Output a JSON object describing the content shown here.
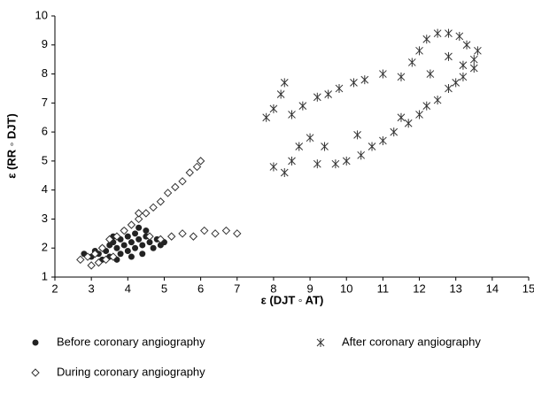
{
  "chart_data": {
    "type": "scatter",
    "x_label": "ε (DJT ◦ AT)",
    "y_label": "ε (RR ◦ DJT)",
    "xlim": [
      2,
      15
    ],
    "ylim": [
      1,
      10
    ],
    "xticks": [
      2,
      3,
      4,
      5,
      6,
      7,
      8,
      9,
      10,
      11,
      12,
      13,
      14,
      15
    ],
    "yticks": [
      1,
      2,
      3,
      4,
      5,
      6,
      7,
      8,
      9,
      10
    ],
    "series": [
      {
        "name": "Before coronary angiography",
        "color": "#222222",
        "marker": "circle",
        "x": [
          2.8,
          3.0,
          3.1,
          3.2,
          3.3,
          3.4,
          3.5,
          3.5,
          3.6,
          3.7,
          3.8,
          3.8,
          3.9,
          4.0,
          4.0,
          4.1,
          4.2,
          4.2,
          4.3,
          4.4,
          4.4,
          4.5,
          4.6,
          4.7,
          4.8,
          4.9,
          5.0,
          3.3,
          3.7,
          4.1,
          4.5,
          3.9,
          4.3,
          3.6
        ],
        "y": [
          1.8,
          1.7,
          1.9,
          1.8,
          2.0,
          1.9,
          2.1,
          1.7,
          2.2,
          2.0,
          2.3,
          1.8,
          2.1,
          2.4,
          1.9,
          2.2,
          2.0,
          2.5,
          2.3,
          2.1,
          1.8,
          2.4,
          2.2,
          2.0,
          2.3,
          2.1,
          2.2,
          1.6,
          1.6,
          1.7,
          2.6,
          2.6,
          2.7,
          2.4
        ]
      },
      {
        "name": "After coronary angiography",
        "color": "#333333",
        "marker": "asterisk",
        "x": [
          8.3,
          8.2,
          8.0,
          7.8,
          8.5,
          8.8,
          9.2,
          9.5,
          9.8,
          10.2,
          10.5,
          11.0,
          11.5,
          11.8,
          12.0,
          12.2,
          12.5,
          12.8,
          13.1,
          13.3,
          13.5,
          13.6,
          13.5,
          13.2,
          13.0,
          12.8,
          12.5,
          12.2,
          12.0,
          11.7,
          11.3,
          11.0,
          10.7,
          10.4,
          10.0,
          9.7,
          9.4,
          9.0,
          8.7,
          8.5,
          8.3,
          8.0,
          10.3,
          9.2,
          11.5,
          12.3,
          12.8,
          13.2
        ],
        "y": [
          7.7,
          7.3,
          6.8,
          6.5,
          6.6,
          6.9,
          7.2,
          7.3,
          7.5,
          7.7,
          7.8,
          8.0,
          7.9,
          8.4,
          8.8,
          9.2,
          9.4,
          9.4,
          9.3,
          9.0,
          8.5,
          8.8,
          8.2,
          7.9,
          7.7,
          7.5,
          7.1,
          6.9,
          6.6,
          6.3,
          6.0,
          5.7,
          5.5,
          5.2,
          5.0,
          4.9,
          5.5,
          5.8,
          5.5,
          5.0,
          4.6,
          4.8,
          5.9,
          4.9,
          6.5,
          8.0,
          8.6,
          8.3
        ]
      },
      {
        "name": "During coronary angiography",
        "color": "#333333",
        "marker": "diamond",
        "x": [
          2.7,
          2.9,
          3.1,
          3.3,
          3.5,
          3.7,
          3.9,
          4.1,
          4.3,
          4.5,
          4.7,
          4.9,
          5.1,
          5.3,
          5.5,
          5.7,
          5.9,
          6.0,
          4.6,
          4.9,
          5.2,
          5.5,
          5.8,
          6.1,
          6.4,
          6.7,
          7.0,
          3.0,
          3.2,
          3.4,
          3.6,
          4.3
        ],
        "y": [
          1.6,
          1.7,
          1.8,
          2.0,
          2.3,
          2.4,
          2.6,
          2.8,
          3.0,
          3.2,
          3.4,
          3.6,
          3.9,
          4.1,
          4.3,
          4.6,
          4.8,
          5.0,
          2.4,
          2.3,
          2.4,
          2.5,
          2.4,
          2.6,
          2.5,
          2.6,
          2.5,
          1.4,
          1.5,
          1.6,
          1.7,
          3.2
        ]
      }
    ]
  }
}
